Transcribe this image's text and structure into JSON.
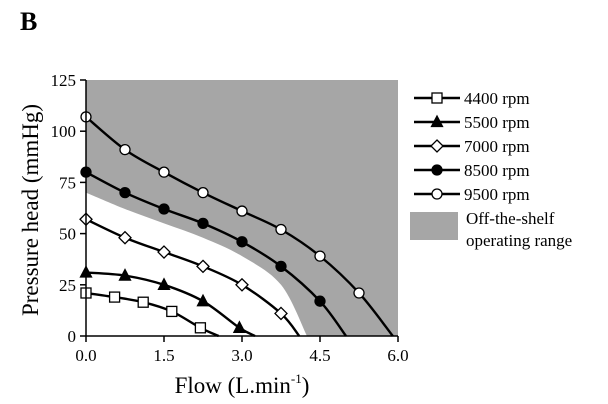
{
  "panel_label": "B",
  "chart_data": {
    "type": "line",
    "xlabel": "Flow (L.min",
    "xlabel_superscript": "-1",
    "xlabel_suffix": ")",
    "ylabel": "Pressure head (mmHg)",
    "xlim": [
      0,
      6
    ],
    "ylim": [
      0,
      125
    ],
    "x_ticks": [
      "0.0",
      "1.5",
      "3.0",
      "4.5",
      "6.0"
    ],
    "y_ticks": [
      "0",
      "25",
      "50",
      "75",
      "100",
      "125"
    ],
    "grid": false,
    "legend_position": "right",
    "series": [
      {
        "name": "4400 rpm",
        "marker": "square-open",
        "color": "#000000",
        "x": [
          0.0,
          0.55,
          1.1,
          1.65,
          2.2,
          2.55
        ],
        "y": [
          21,
          19,
          16.5,
          12,
          4,
          0
        ]
      },
      {
        "name": "5500 rpm",
        "marker": "triangle-filled",
        "color": "#000000",
        "x": [
          0.0,
          0.75,
          1.5,
          2.25,
          2.95,
          3.25
        ],
        "y": [
          31,
          29.5,
          25,
          17,
          4,
          0
        ]
      },
      {
        "name": "7000 rpm",
        "marker": "diamond-open",
        "color": "#000000",
        "x": [
          0.0,
          0.75,
          1.5,
          2.25,
          3.0,
          3.75,
          4.1
        ],
        "y": [
          57,
          48,
          41,
          34,
          25,
          11,
          0
        ]
      },
      {
        "name": "8500 rpm",
        "marker": "circle-filled",
        "color": "#000000",
        "x": [
          0.0,
          0.75,
          1.5,
          2.25,
          3.0,
          3.75,
          4.5,
          5.0
        ],
        "y": [
          80,
          70,
          62,
          55,
          46,
          34,
          17,
          0
        ]
      },
      {
        "name": "9500 rpm",
        "marker": "circle-open",
        "color": "#000000",
        "x": [
          0.0,
          0.75,
          1.5,
          2.25,
          3.0,
          3.75,
          4.5,
          5.25,
          5.9
        ],
        "y": [
          107,
          91,
          80,
          70,
          61,
          52,
          39,
          21,
          0
        ]
      }
    ],
    "shaded_region": {
      "label_line1": "Off-the-shelf",
      "label_line2": "operating range",
      "color": "#a6a6a6",
      "upper_y": 125,
      "lower_boundary": {
        "x": [
          0.0,
          0.75,
          1.5,
          2.25,
          3.0,
          3.75,
          4.25
        ],
        "y": [
          70,
          62,
          55,
          48,
          39,
          25,
          0
        ]
      }
    }
  }
}
